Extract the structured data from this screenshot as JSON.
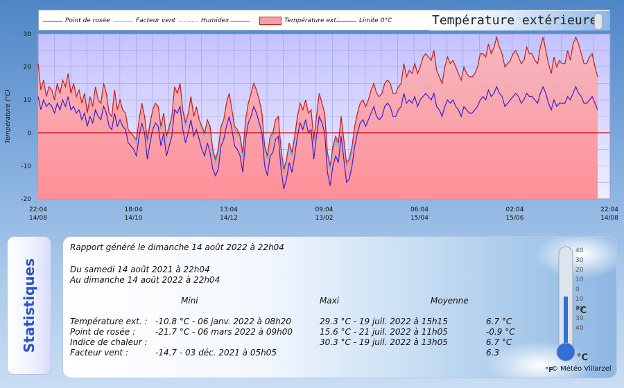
{
  "legend": {
    "items": [
      {
        "label": "Point de rosée",
        "color": "#3b1fd0",
        "style": "solid"
      },
      {
        "label": "Facteur vent",
        "color": "#22c8f0",
        "style": "solid"
      },
      {
        "label": "Humidex",
        "color": "#d94040",
        "style": "dotted"
      },
      {
        "label": "",
        "color": "#d41a1a",
        "style": "solid"
      },
      {
        "label": "Température ext.",
        "color": "#f0a0a8",
        "style": "fill"
      },
      {
        "label": "Limite 0°C",
        "color": "#cc0000",
        "style": "solid"
      }
    ],
    "title": "Température extérieure"
  },
  "chart_data": {
    "type": "line",
    "ylabel": "Température (°C)",
    "ylim": [
      -20,
      30
    ],
    "yticks": [
      "30",
      "20",
      "10",
      "0",
      "-10",
      "-20"
    ],
    "xticks": [
      {
        "time": "22:04",
        "date": "14/08"
      },
      {
        "time": "18:04",
        "date": "14/10"
      },
      {
        "time": "13:04",
        "date": "14/12"
      },
      {
        "time": "09:04",
        "date": "13/02"
      },
      {
        "time": "06:04",
        "date": "15/04"
      },
      {
        "time": "02:04",
        "date": "15/06"
      },
      {
        "time": "22:04",
        "date": "14/08"
      }
    ],
    "grid": true,
    "series": [
      {
        "name": "Température ext.",
        "values": [
          21,
          13,
          16,
          11,
          14,
          13,
          10,
          15,
          12,
          16,
          14,
          18,
          12,
          15,
          11,
          13,
          9,
          12,
          6,
          11,
          8,
          14,
          10,
          9,
          15,
          12,
          6,
          5,
          13,
          7,
          10,
          7,
          6,
          1,
          0,
          -1,
          -2,
          4,
          9,
          5,
          -2,
          3,
          7,
          9,
          8,
          2,
          6,
          -1,
          2,
          5,
          14,
          12,
          15,
          7,
          3,
          6,
          11,
          5,
          8,
          4,
          2,
          0,
          4,
          2,
          -5,
          -8,
          -5,
          2,
          4,
          9,
          12,
          7,
          2,
          1,
          -1,
          -6,
          4,
          9,
          12,
          15,
          13,
          10,
          6,
          -4,
          -7,
          -1,
          0,
          4,
          5,
          -5,
          -11,
          -8,
          -3,
          -6,
          -1,
          5,
          9,
          7,
          10,
          6,
          7,
          -2,
          5,
          12,
          9,
          6,
          -6,
          -10,
          -4,
          -1,
          -3,
          5,
          -2,
          -9,
          -8,
          -4,
          2,
          6,
          9,
          10,
          8,
          10,
          13,
          15,
          12,
          11,
          12,
          15,
          16,
          15,
          12,
          12,
          14,
          15,
          21,
          17,
          19,
          18,
          21,
          18,
          20,
          23,
          24,
          23,
          22,
          25,
          19,
          17,
          15,
          20,
          23,
          21,
          22,
          20,
          18,
          16,
          20,
          18,
          17,
          17,
          18,
          20,
          24,
          24,
          23,
          27,
          24,
          26,
          29,
          26,
          24,
          20,
          21,
          22,
          24,
          25,
          23,
          21,
          22,
          26,
          24,
          24,
          22,
          21,
          26,
          29,
          25,
          21,
          18,
          23,
          20,
          22,
          21,
          21,
          25,
          22,
          27,
          29,
          27,
          24,
          21,
          21,
          23,
          24,
          20,
          17
        ]
      },
      {
        "name": "Point de rosée",
        "values": [
          11,
          7,
          10,
          8,
          9,
          8,
          6,
          9,
          7,
          10,
          8,
          11,
          7,
          8,
          6,
          7,
          4,
          6,
          2,
          5,
          3,
          7,
          5,
          4,
          8,
          6,
          2,
          1,
          6,
          2,
          4,
          2,
          1,
          -3,
          -4,
          -5,
          -7,
          -1,
          3,
          0,
          -8,
          -3,
          1,
          3,
          2,
          -4,
          0,
          -7,
          -4,
          -1,
          7,
          6,
          8,
          1,
          -3,
          0,
          4,
          -1,
          1,
          -2,
          -5,
          -7,
          -3,
          -6,
          -11,
          -13,
          -11,
          -4,
          -2,
          2,
          5,
          1,
          -4,
          -5,
          -7,
          -12,
          -2,
          3,
          5,
          8,
          6,
          3,
          0,
          -10,
          -13,
          -7,
          -6,
          -2,
          -1,
          -11,
          -17,
          -14,
          -9,
          -12,
          -7,
          -1,
          3,
          1,
          4,
          0,
          1,
          -8,
          -1,
          5,
          3,
          0,
          -12,
          -16,
          -10,
          -7,
          -9,
          -1,
          -8,
          -15,
          -14,
          -10,
          -4,
          0,
          3,
          4,
          2,
          4,
          6,
          8,
          5,
          4,
          5,
          8,
          9,
          8,
          5,
          5,
          7,
          8,
          12,
          9,
          10,
          9,
          11,
          8,
          10,
          11,
          12,
          11,
          10,
          12,
          8,
          7,
          5,
          8,
          10,
          9,
          10,
          8,
          7,
          5,
          8,
          7,
          6,
          6,
          7,
          8,
          10,
          11,
          10,
          13,
          11,
          12,
          14,
          12,
          11,
          8,
          9,
          10,
          11,
          12,
          11,
          9,
          10,
          12,
          11,
          11,
          10,
          9,
          12,
          14,
          12,
          9,
          7,
          10,
          8,
          9,
          9,
          9,
          11,
          10,
          12,
          14,
          12,
          11,
          9,
          9,
          10,
          11,
          9,
          7
        ]
      },
      {
        "name": "Facteur vent",
        "values": [
          21,
          13,
          16,
          11,
          14,
          13,
          10,
          15,
          12,
          16,
          14,
          18,
          12,
          15,
          11,
          13,
          9,
          12,
          6,
          11,
          8,
          14,
          10,
          9,
          15,
          12,
          6,
          5,
          13,
          7,
          10,
          7,
          6,
          1,
          0,
          -1,
          -3,
          4,
          9,
          5,
          -3,
          2,
          7,
          9,
          8,
          1,
          6,
          -2,
          1,
          5,
          14,
          12,
          15,
          7,
          2,
          6,
          11,
          5,
          8,
          4,
          1,
          -1,
          4,
          1,
          -6,
          -9,
          -6,
          1,
          4,
          9,
          12,
          7,
          1,
          0,
          -2,
          -7,
          4,
          9,
          12,
          15,
          13,
          10,
          6,
          -5,
          -8,
          -2,
          -1,
          4,
          5,
          -6,
          -12,
          -9,
          -4,
          -7,
          -2,
          5,
          9,
          7,
          10,
          6,
          7,
          -3,
          5,
          12,
          9,
          6,
          -7,
          -11,
          -5,
          -2,
          -4,
          5,
          -3,
          -10,
          -9,
          -5,
          2,
          6,
          9,
          10,
          8,
          10,
          13,
          15,
          12,
          11,
          12,
          15,
          16,
          15,
          12,
          12,
          14,
          15,
          21,
          17,
          19,
          18,
          21,
          18,
          20,
          23,
          24,
          23,
          22,
          25,
          19,
          17,
          15,
          20,
          23,
          21,
          22,
          20,
          18,
          16,
          20,
          18,
          17,
          17,
          18,
          20,
          24,
          24,
          23,
          27,
          24,
          26,
          29,
          26,
          24,
          20,
          21,
          22,
          24,
          25,
          23,
          21,
          22,
          26,
          24,
          24,
          22,
          21,
          26,
          29,
          25,
          21,
          18,
          23,
          20,
          22,
          21,
          21,
          25,
          22,
          27,
          29,
          27,
          24,
          21,
          21,
          23,
          24,
          20,
          17
        ]
      }
    ],
    "zero_line": 0
  },
  "stats": {
    "side_label": "Statistiques",
    "generated": "Rapport généré le dimanche 14 août 2022 à 22h04",
    "from": "Du samedi 14 août 2021 à 22h04",
    "to": "Au dimanche 14 août 2022 à 22h04",
    "headers": {
      "mini": "Mini",
      "maxi": "Maxi",
      "moyenne": "Moyenne"
    },
    "rows": [
      {
        "label": "Température ext. :",
        "mini": "-10.8 °C - 06 janv. 2022 à 08h20",
        "maxi": "29.3 °C - 19 juil. 2022 à 15h15",
        "moyenne": "6.7 °C"
      },
      {
        "label": "Point de rosée :",
        "mini": "-21.7 °C - 06 mars 2022 à 09h00",
        "maxi": "15.6 °C - 21 juil. 2022 à 11h05",
        "moyenne": "-0.9 °C"
      },
      {
        "label": "Indice de chaleur :",
        "mini": "",
        "maxi": "30.3 °C - 19 juil. 2022 à 13h05",
        "moyenne": "6.7 °C"
      },
      {
        "label": "Facteur vent :",
        "mini": "-14.7  - 03 déc. 2021 à 05h05",
        "maxi": "",
        "moyenne": "6.3"
      }
    ],
    "copyright": "© Météo Villarzel",
    "thermometer_labels": [
      "40",
      "30",
      "20",
      "10",
      "0",
      "10",
      "20",
      "30",
      "40"
    ],
    "unit_c": "°C",
    "unit_f": "°F"
  }
}
